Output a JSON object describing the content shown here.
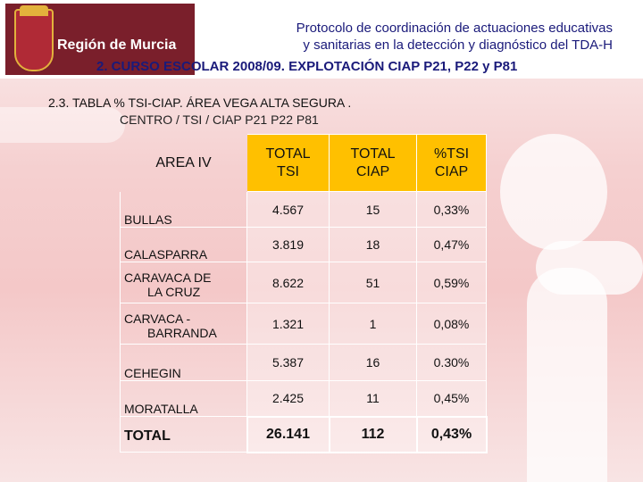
{
  "header": {
    "region_name": "Región de Murcia",
    "protocol_line1": "Protocolo de coordinación de actuaciones educativas",
    "protocol_line2": "y sanitarias en la detección y diagnóstico del TDA-H",
    "section_title": "2. CURSO ESCOLAR 2008/09. EXPLOTACIÓN CIAP P21, P22 y P81"
  },
  "table": {
    "title": "2.3. TABLA % TSI-CIAP. ÁREA VEGA ALTA SEGURA .",
    "subtitle": "CENTRO / TSI / CIAP P21 P22 P81",
    "headers": {
      "area": "AREA IV",
      "total_tsi_1": "TOTAL",
      "total_tsi_2": "TSI",
      "total_ciap_1": "TOTAL",
      "total_ciap_2": "CIAP",
      "pct_1": "%TSI",
      "pct_2": "CIAP"
    },
    "rows": [
      {
        "center_1": "BULLAS",
        "center_2": "",
        "tsi": "4.567",
        "ciap": "15",
        "pct": "0,33%"
      },
      {
        "center_1": "CALASPARRA",
        "center_2": "",
        "tsi": "3.819",
        "ciap": "18",
        "pct": "0,47%"
      },
      {
        "center_1": "CARAVACA DE",
        "center_2": "LA CRUZ",
        "tsi": "8.622",
        "ciap": "51",
        "pct": "0,59%"
      },
      {
        "center_1": "CARVACA -",
        "center_2": "BARRANDA",
        "tsi": "1.321",
        "ciap": "1",
        "pct": "0,08%"
      },
      {
        "center_1": "CEHEGIN",
        "center_2": "",
        "tsi": "5.387",
        "ciap": "16",
        "pct": "0.30%"
      },
      {
        "center_1": "MORATALLA",
        "center_2": "",
        "tsi": "2.425",
        "ciap": "11",
        "pct": "0,45%"
      }
    ],
    "total": {
      "label": "TOTAL",
      "tsi": "26.141",
      "ciap": "112",
      "pct": "0,43%"
    }
  }
}
